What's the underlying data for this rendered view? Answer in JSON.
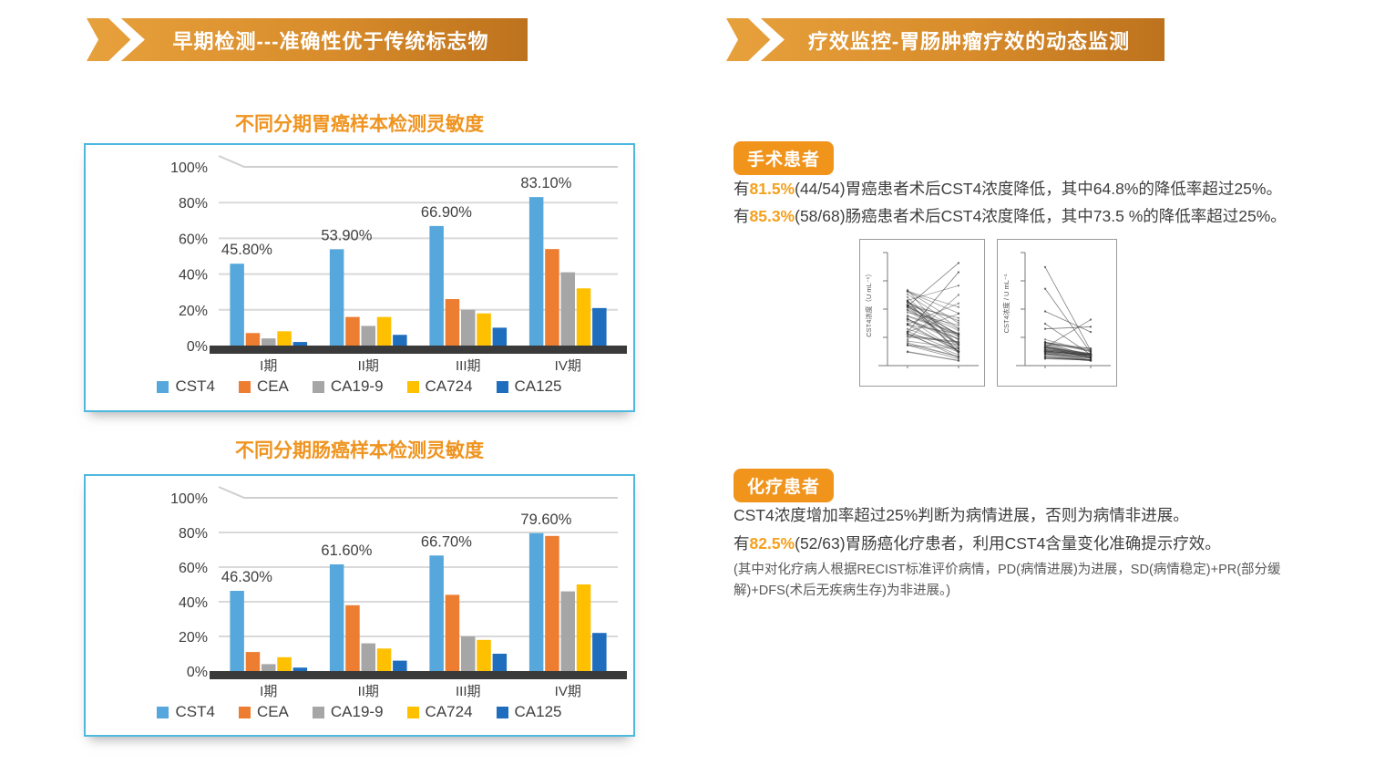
{
  "left_section": {
    "banner": "早期检测---准确性优于传统标志物"
  },
  "right_section": {
    "banner": "疗效监控-胃肠肿瘤疗效的动态监测"
  },
  "chart_data": [
    {
      "type": "bar",
      "title": "不同分期胃癌样本检测灵敏度",
      "categories": [
        "I期",
        "II期",
        "III期",
        "IV期"
      ],
      "yticks": [
        "0%",
        "20%",
        "40%",
        "60%",
        "80%",
        "100%"
      ],
      "ylim": [
        0,
        100
      ],
      "grid": true,
      "legend_position": "bottom",
      "series": [
        {
          "name": "CST4",
          "color": "#55a7dc",
          "values": [
            45.8,
            53.9,
            66.9,
            83.1
          ],
          "labels": [
            "45.80%",
            "53.90%",
            "66.90%",
            "83.10%"
          ]
        },
        {
          "name": "CEA",
          "color": "#ed7d31",
          "values": [
            7,
            16,
            26,
            54
          ]
        },
        {
          "name": "CA19-9",
          "color": "#a6a6a6",
          "values": [
            4,
            11,
            20,
            41
          ]
        },
        {
          "name": "CA724",
          "color": "#ffc000",
          "values": [
            8,
            16,
            18,
            32
          ]
        },
        {
          "name": "CA125",
          "color": "#1f6ebe",
          "values": [
            2,
            6,
            10,
            21
          ]
        }
      ]
    },
    {
      "type": "bar",
      "title": "不同分期肠癌样本检测灵敏度",
      "categories": [
        "I期",
        "II期",
        "III期",
        "IV期"
      ],
      "yticks": [
        "0%",
        "20%",
        "40%",
        "60%",
        "80%",
        "100%"
      ],
      "ylim": [
        0,
        100
      ],
      "grid": true,
      "legend_position": "bottom",
      "series": [
        {
          "name": "CST4",
          "color": "#55a7dc",
          "values": [
            46.3,
            61.6,
            66.7,
            79.6
          ],
          "labels": [
            "46.30%",
            "61.60%",
            "66.70%",
            "79.60%"
          ]
        },
        {
          "name": "CEA",
          "color": "#ed7d31",
          "values": [
            11,
            38,
            44,
            78
          ]
        },
        {
          "name": "CA19-9",
          "color": "#a6a6a6",
          "values": [
            4,
            16,
            20,
            46
          ]
        },
        {
          "name": "CA724",
          "color": "#ffc000",
          "values": [
            8,
            13,
            18,
            50
          ]
        },
        {
          "name": "CA125",
          "color": "#1f6ebe",
          "values": [
            2,
            6,
            10,
            22
          ]
        }
      ]
    }
  ],
  "surgery": {
    "badge": "手术患者",
    "lines": [
      {
        "pre": "有",
        "num": "81.5%",
        "rest": "(44/54)胃癌患者术后CST4浓度降低，其中64.8%的降低率超过25%。"
      },
      {
        "pre": "有",
        "num": "85.3%",
        "rest": "(58/68)肠癌患者术后CST4浓度降低，其中73.5 %的降低率超过25%。"
      }
    ],
    "mini_plots": [
      {
        "ylabel": "CST4浓度（U mL⁻¹）",
        "seed": 7,
        "n_pairs": 48,
        "pattern": "spread-decreasing",
        "feature_lines": [
          [
            0.55,
            0.97
          ],
          [
            0.3,
            0.88
          ]
        ]
      },
      {
        "ylabel": "CST4浓度 / U mL⁻¹",
        "seed": 11,
        "n_pairs": 40,
        "pattern": "clustered-low-decreasing",
        "feature_lines": [
          [
            0.93,
            0.12
          ],
          [
            0.72,
            0.1
          ],
          [
            0.5,
            0.3
          ],
          [
            0.38,
            0.08
          ],
          [
            0.15,
            0.42
          ],
          [
            0.33,
            0.35
          ]
        ]
      }
    ]
  },
  "chemo": {
    "badge": "化疗患者",
    "line1": "CST4浓度增加率超过25%判断为病情进展，否则为病情非进展。",
    "line2": {
      "pre": "有",
      "num": "82.5%",
      "rest": "(52/63)胃肠癌化疗患者，利用CST4含量变化准确提示疗效。"
    },
    "note": "(其中对化疗病人根据RECIST标准评价病情，PD(病情进展)为进展，SD(病情稳定)+PR(部分缓解)+DFS(术后无疾病生存)为非进展。)"
  },
  "colors": {
    "accent_orange": "#f0941c",
    "banner_gradient_start": "#e7a13c",
    "banner_gradient_end": "#bd721d",
    "chart_border_blue": "#4fb8e0",
    "axis_dark": "#3a3a3a",
    "gridline": "#d9d9d9",
    "body_text": "#3f3f3f"
  }
}
